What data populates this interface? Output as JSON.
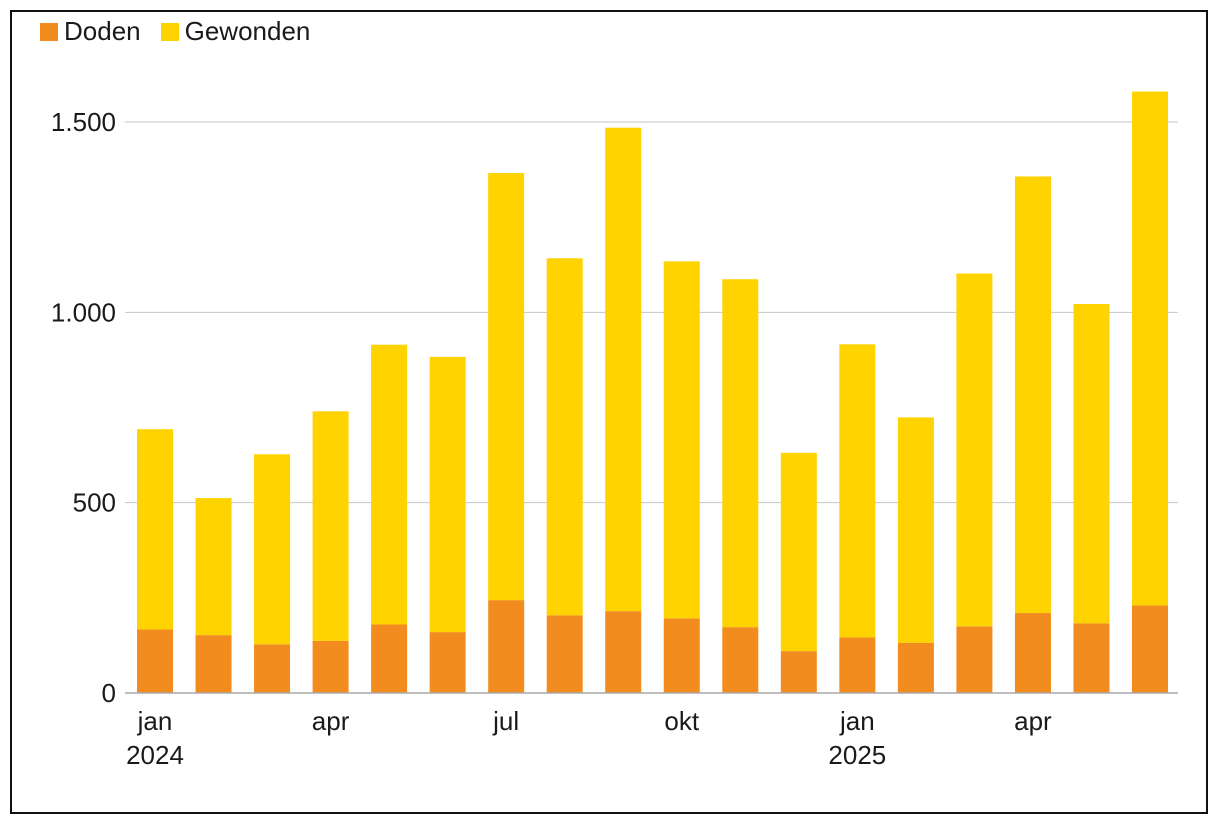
{
  "chart_data": {
    "type": "bar",
    "stacked": true,
    "categories": [
      "jan 2024",
      "feb 2024",
      "mrt 2024",
      "apr 2024",
      "mei 2024",
      "jun 2024",
      "jul 2024",
      "aug 2024",
      "sep 2024",
      "okt 2024",
      "nov 2024",
      "dec 2024",
      "jan 2025",
      "feb 2025",
      "mrt 2025",
      "apr 2025",
      "mei 2025",
      "jun 2025"
    ],
    "series": [
      {
        "name": "Doden",
        "color": "#F28C1E",
        "values": [
          167,
          152,
          128,
          137,
          180,
          160,
          244,
          204,
          215,
          196,
          173,
          110,
          146,
          132,
          175,
          210,
          183,
          230
        ]
      },
      {
        "name": "Gewonden",
        "color": "#FFD300",
        "values": [
          526,
          360,
          499,
          603,
          735,
          723,
          1122,
          938,
          1270,
          938,
          914,
          521,
          770,
          592,
          927,
          1147,
          839,
          1350
        ]
      }
    ],
    "ylim": [
      0,
      1600
    ],
    "yticks": [
      0,
      500,
      1000,
      1500
    ],
    "ytick_labels": [
      "0",
      "500",
      "1.000",
      "1.500"
    ],
    "xtick_labels": [
      {
        "index": 0,
        "line1": "jan",
        "line2": "2024"
      },
      {
        "index": 3,
        "line1": "apr",
        "line2": ""
      },
      {
        "index": 6,
        "line1": "jul",
        "line2": ""
      },
      {
        "index": 9,
        "line1": "okt",
        "line2": ""
      },
      {
        "index": 12,
        "line1": "jan",
        "line2": "2025"
      },
      {
        "index": 15,
        "line1": "apr",
        "line2": ""
      }
    ],
    "grid": true,
    "legend_position": "top-left",
    "title": "",
    "xlabel": "",
    "ylabel": ""
  }
}
